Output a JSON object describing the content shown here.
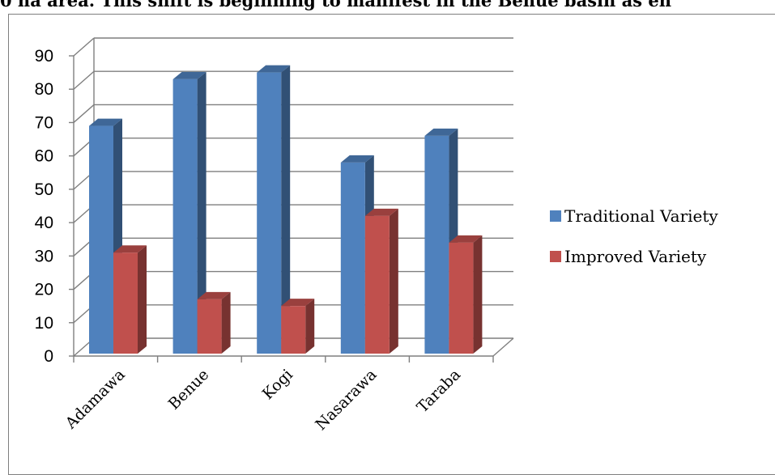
{
  "document": {
    "caption_fragment": "0 ha area. This shift is beginning to manifest in the Benue basin as en"
  },
  "chart_data": {
    "type": "bar",
    "title": "",
    "xlabel": "",
    "ylabel": "",
    "categories": [
      "Adamawa",
      "Benue",
      "Kogi",
      "Nasarawa",
      "Taraba"
    ],
    "series": [
      {
        "name": "Traditional Variety",
        "values": [
          69,
          83,
          85,
          58,
          66
        ],
        "color": "#4f81bd"
      },
      {
        "name": "Improved Variety",
        "values": [
          31,
          17,
          15,
          42,
          34
        ],
        "color": "#c0504d"
      }
    ],
    "ylim": [
      0,
      90
    ],
    "yticks": [
      "0",
      "10",
      "20",
      "30",
      "40",
      "50",
      "60",
      "70",
      "80",
      "90"
    ],
    "grid": true,
    "legend_position": "right"
  }
}
